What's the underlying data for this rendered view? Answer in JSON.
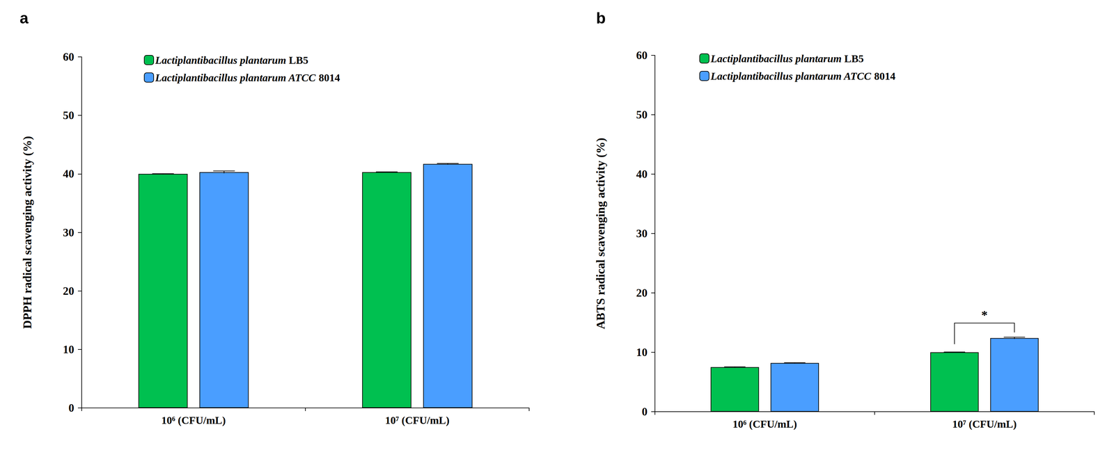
{
  "chart_data": [
    {
      "type": "bar",
      "title": "a",
      "y_label": "DPPH radical scavenging activity (%)",
      "categories": [
        "10⁶ (CFU/mL)",
        "10⁷ (CFU/mL)"
      ],
      "series": [
        {
          "name": "Lactiplantibacillus plantarum LB5",
          "color": "#00c050",
          "values": [
            40.0,
            40.3
          ],
          "errors": [
            0.05,
            0.05
          ]
        },
        {
          "name": "Lactiplantibacillus plantarum ATCC 8014",
          "color": "#4a9eff",
          "values": [
            40.3,
            41.7
          ],
          "errors": [
            0.2,
            0.1
          ]
        }
      ],
      "ylim": [
        0,
        60
      ],
      "yticks": [
        0,
        10,
        20,
        30,
        40,
        50,
        60
      ],
      "grid": false,
      "legend": "upper left"
    },
    {
      "type": "bar",
      "title": "b",
      "y_label": "ABTS radical scavenging activity (%)",
      "categories": [
        "10⁶ (CFU/mL)",
        "10⁷ (CFU/mL)"
      ],
      "series": [
        {
          "name": "Lactiplantibacillus plantarum LB5",
          "color": "#00c050",
          "values": [
            7.5,
            10.0
          ],
          "errors": [
            0.05,
            0.05
          ]
        },
        {
          "name": "Lactiplantibacillus plantarum ATCC 8014",
          "color": "#4a9eff",
          "values": [
            8.2,
            12.4
          ],
          "errors": [
            0.05,
            0.15
          ]
        }
      ],
      "ylim": [
        0,
        60
      ],
      "yticks": [
        0,
        10,
        20,
        30,
        40,
        50,
        60
      ],
      "grid": false,
      "legend": "upper left",
      "annotations": [
        {
          "text": "*",
          "category": "10⁷ (CFU/mL)"
        }
      ]
    }
  ]
}
